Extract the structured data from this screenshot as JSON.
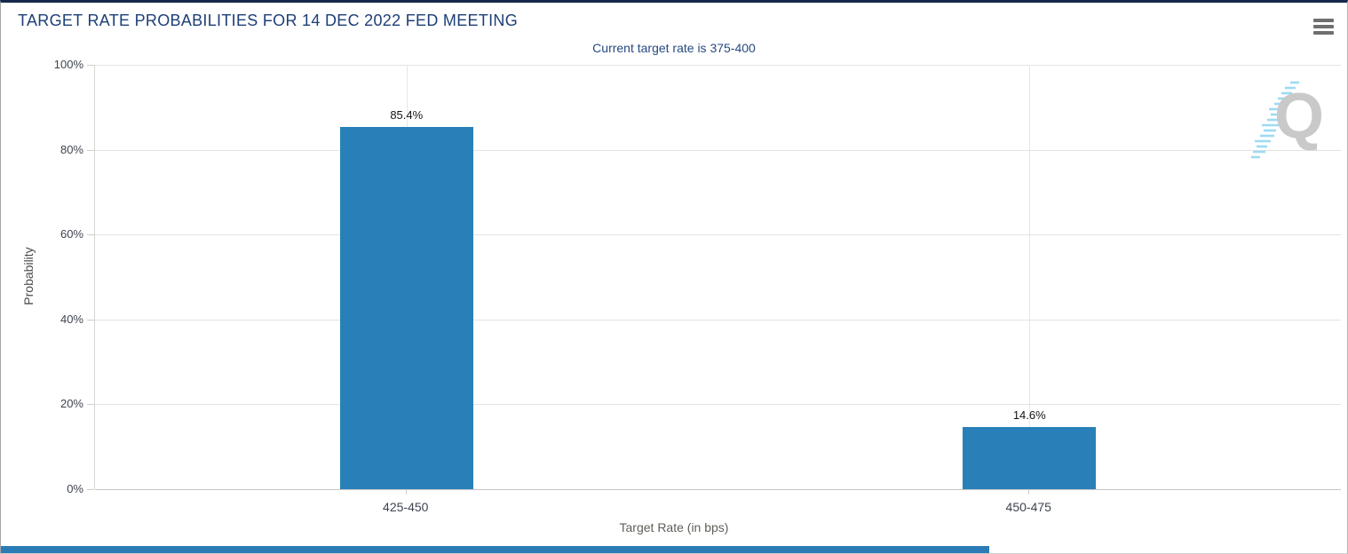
{
  "header": {
    "title": "TARGET RATE PROBABILITIES FOR 14 DEC 2022 FED MEETING",
    "menu_icon": "hamburger-menu"
  },
  "chart_data": {
    "type": "bar",
    "subtitle": "Current target rate is 375-400",
    "categories": [
      "425-450",
      "450-475"
    ],
    "values": [
      85.4,
      14.6
    ],
    "value_labels": [
      "85.4%",
      "14.6%"
    ],
    "xlabel": "Target Rate (in bps)",
    "ylabel": "Probability",
    "ylim": [
      0,
      100
    ],
    "ytick_step": 20,
    "yticks": [
      "100%",
      "80%",
      "60%",
      "40%",
      "20%",
      "0%"
    ],
    "grid": true,
    "legend": "none",
    "bar_color": "#2980b9"
  },
  "watermark": {
    "letter": "Q"
  },
  "colors": {
    "title_navy": "#1d3f76",
    "bar_blue": "#2980b9",
    "gridline": "#e3e3e3",
    "bottom_bar_blue": "#2b7cb5"
  }
}
